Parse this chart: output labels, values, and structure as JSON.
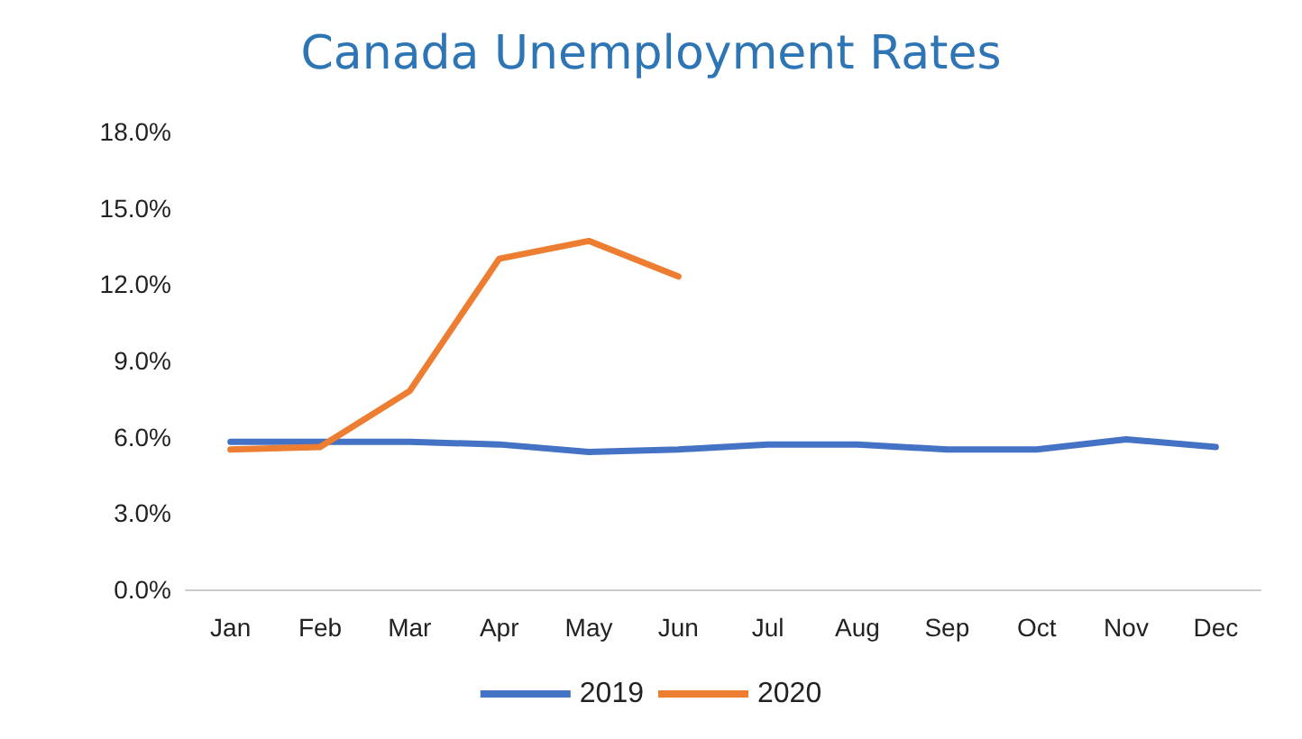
{
  "chart_data": {
    "type": "line",
    "title": "Canada Unemployment Rates",
    "categories": [
      "Jan",
      "Feb",
      "Mar",
      "Apr",
      "May",
      "Jun",
      "Jul",
      "Aug",
      "Sep",
      "Oct",
      "Nov",
      "Dec"
    ],
    "series": [
      {
        "name": "2019",
        "color": "#4472c4",
        "values": [
          5.8,
          5.8,
          5.8,
          5.7,
          5.4,
          5.5,
          5.7,
          5.7,
          5.5,
          5.5,
          5.9,
          5.6
        ]
      },
      {
        "name": "2020",
        "color": "#ed7d31",
        "values": [
          5.5,
          5.6,
          7.8,
          13.0,
          13.7,
          12.3,
          null,
          null,
          null,
          null,
          null,
          null
        ]
      }
    ],
    "ylim": [
      0,
      18
    ],
    "yticks": [
      {
        "value": 0,
        "label": "0.0%"
      },
      {
        "value": 3,
        "label": "3.0%"
      },
      {
        "value": 6,
        "label": "6.0%"
      },
      {
        "value": 9,
        "label": "9.0%"
      },
      {
        "value": 12,
        "label": "12.0%"
      },
      {
        "value": 15,
        "label": "15.0%"
      },
      {
        "value": 18,
        "label": "18.0%"
      }
    ],
    "grid": false,
    "legend": "bottom",
    "marker": "none",
    "line_style": "solid"
  }
}
